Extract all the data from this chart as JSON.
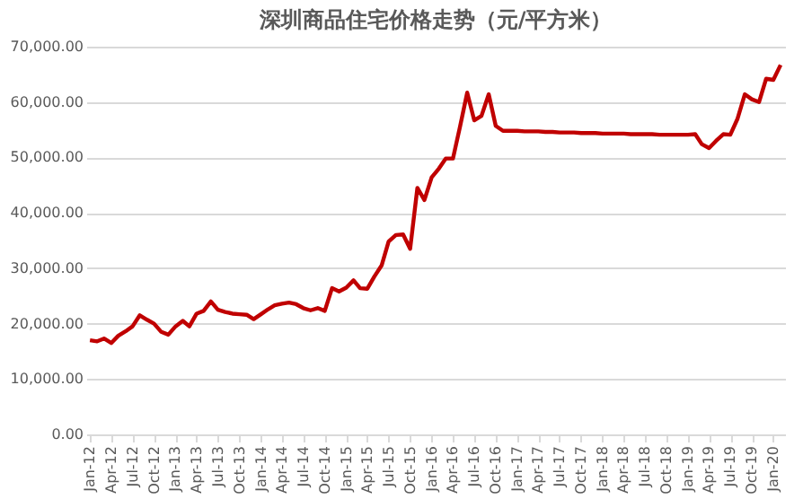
{
  "chart_data": {
    "type": "line",
    "title": "深圳商品住宅价格走势（元/平方米）",
    "x": [
      "2012-01",
      "2012-02",
      "2012-03",
      "2012-04",
      "2012-05",
      "2012-06",
      "2012-07",
      "2012-08",
      "2012-09",
      "2012-10",
      "2012-11",
      "2012-12",
      "2013-01",
      "2013-02",
      "2013-03",
      "2013-04",
      "2013-05",
      "2013-06",
      "2013-07",
      "2013-08",
      "2013-09",
      "2013-10",
      "2013-11",
      "2013-12",
      "2014-01",
      "2014-02",
      "2014-03",
      "2014-04",
      "2014-05",
      "2014-06",
      "2014-07",
      "2014-08",
      "2014-09",
      "2014-10",
      "2014-11",
      "2014-12",
      "2015-01",
      "2015-02",
      "2015-03",
      "2015-04",
      "2015-05",
      "2015-06",
      "2015-07",
      "2015-08",
      "2015-09",
      "2015-10",
      "2015-11",
      "2015-12",
      "2016-01",
      "2016-02",
      "2016-03",
      "2016-04",
      "2016-05",
      "2016-06",
      "2016-07",
      "2016-08",
      "2016-09",
      "2016-10",
      "2016-11",
      "2016-12",
      "2017-01",
      "2017-02",
      "2017-03",
      "2017-04",
      "2017-05",
      "2017-06",
      "2017-07",
      "2017-08",
      "2017-09",
      "2017-10",
      "2017-11",
      "2017-12",
      "2018-01",
      "2018-02",
      "2018-03",
      "2018-04",
      "2018-05",
      "2018-06",
      "2018-07",
      "2018-08",
      "2018-09",
      "2018-10",
      "2018-11",
      "2018-12",
      "2019-01",
      "2019-02",
      "2019-03",
      "2019-04",
      "2019-05",
      "2019-06",
      "2019-07",
      "2019-08",
      "2019-09",
      "2019-10",
      "2019-11",
      "2019-12",
      "2020-01",
      "2020-02"
    ],
    "series": [
      {
        "color": "#c00000",
        "values": [
          17000,
          16800,
          17300,
          16500,
          17800,
          18600,
          19500,
          21500,
          20700,
          20000,
          18500,
          18000,
          19500,
          20500,
          19500,
          21800,
          22300,
          24000,
          22500,
          22100,
          21800,
          21700,
          21600,
          20800,
          21700,
          22600,
          23300,
          23600,
          23800,
          23500,
          22800,
          22400,
          22800,
          22300,
          26400,
          25800,
          26500,
          27800,
          26400,
          26300,
          28500,
          30500,
          34800,
          36000,
          36100,
          33500,
          44500,
          42300,
          46400,
          48000,
          49800,
          49800,
          55500,
          61700,
          56700,
          57500,
          61400,
          55700,
          54800,
          54800,
          54800,
          54700,
          54700,
          54700,
          54600,
          54600,
          54500,
          54500,
          54500,
          54400,
          54400,
          54400,
          54300,
          54300,
          54300,
          54300,
          54200,
          54200,
          54200,
          54200,
          54100,
          54100,
          54100,
          54100,
          54100,
          54200,
          52400,
          51700,
          53000,
          54200,
          54100,
          57000,
          61400,
          60500,
          60000,
          64200,
          64000,
          66700
        ]
      }
    ],
    "xlim": [
      "2011-12-16",
      "2020-02-20"
    ],
    "xticks": [
      {
        "value": "2012-01",
        "label": "Jan-12"
      },
      {
        "value": "2012-04",
        "label": "Apr-12"
      },
      {
        "value": "2012-07",
        "label": "Jul-12"
      },
      {
        "value": "2012-10",
        "label": "Oct-12"
      },
      {
        "value": "2013-01",
        "label": "Jan-13"
      },
      {
        "value": "2013-04",
        "label": "Apr-13"
      },
      {
        "value": "2013-07",
        "label": "Jul-13"
      },
      {
        "value": "2013-10",
        "label": "Oct-13"
      },
      {
        "value": "2014-01",
        "label": "Jan-14"
      },
      {
        "value": "2014-04",
        "label": "Apr-14"
      },
      {
        "value": "2014-07",
        "label": "Jul-14"
      },
      {
        "value": "2014-10",
        "label": "Oct-14"
      },
      {
        "value": "2015-01",
        "label": "Jan-15"
      },
      {
        "value": "2015-04",
        "label": "Apr-15"
      },
      {
        "value": "2015-07",
        "label": "Jul-15"
      },
      {
        "value": "2015-10",
        "label": "Oct-15"
      },
      {
        "value": "2016-01",
        "label": "Jan-16"
      },
      {
        "value": "2016-04",
        "label": "Apr-16"
      },
      {
        "value": "2016-07",
        "label": "Jul-16"
      },
      {
        "value": "2016-10",
        "label": "Oct-16"
      },
      {
        "value": "2017-01",
        "label": "Jan-17"
      },
      {
        "value": "2017-04",
        "label": "Apr-17"
      },
      {
        "value": "2017-07",
        "label": "Jul-17"
      },
      {
        "value": "2017-10",
        "label": "Oct-17"
      },
      {
        "value": "2018-01",
        "label": "Jan-18"
      },
      {
        "value": "2018-04",
        "label": "Apr-18"
      },
      {
        "value": "2018-07",
        "label": "Jul-18"
      },
      {
        "value": "2018-10",
        "label": "Oct-18"
      },
      {
        "value": "2019-01",
        "label": "Jan-19"
      },
      {
        "value": "2019-04",
        "label": "Apr-19"
      },
      {
        "value": "2019-07",
        "label": "Jul-19"
      },
      {
        "value": "2019-10",
        "label": "Oct-19"
      },
      {
        "value": "2020-01",
        "label": "Jan-20"
      }
    ],
    "ylim": [
      0,
      70000
    ],
    "yticks": [
      {
        "value": 0,
        "label": "0.00"
      },
      {
        "value": 10000,
        "label": "10,000.00"
      },
      {
        "value": 20000,
        "label": "20,000.00"
      },
      {
        "value": 30000,
        "label": "30,000.00"
      },
      {
        "value": 40000,
        "label": "40,000.00"
      },
      {
        "value": 50000,
        "label": "50,000.00"
      },
      {
        "value": 60000,
        "label": "60,000.00"
      },
      {
        "value": 70000,
        "label": "70,000.00"
      }
    ],
    "grid": "y",
    "marker": "none",
    "line_style": "solid"
  }
}
